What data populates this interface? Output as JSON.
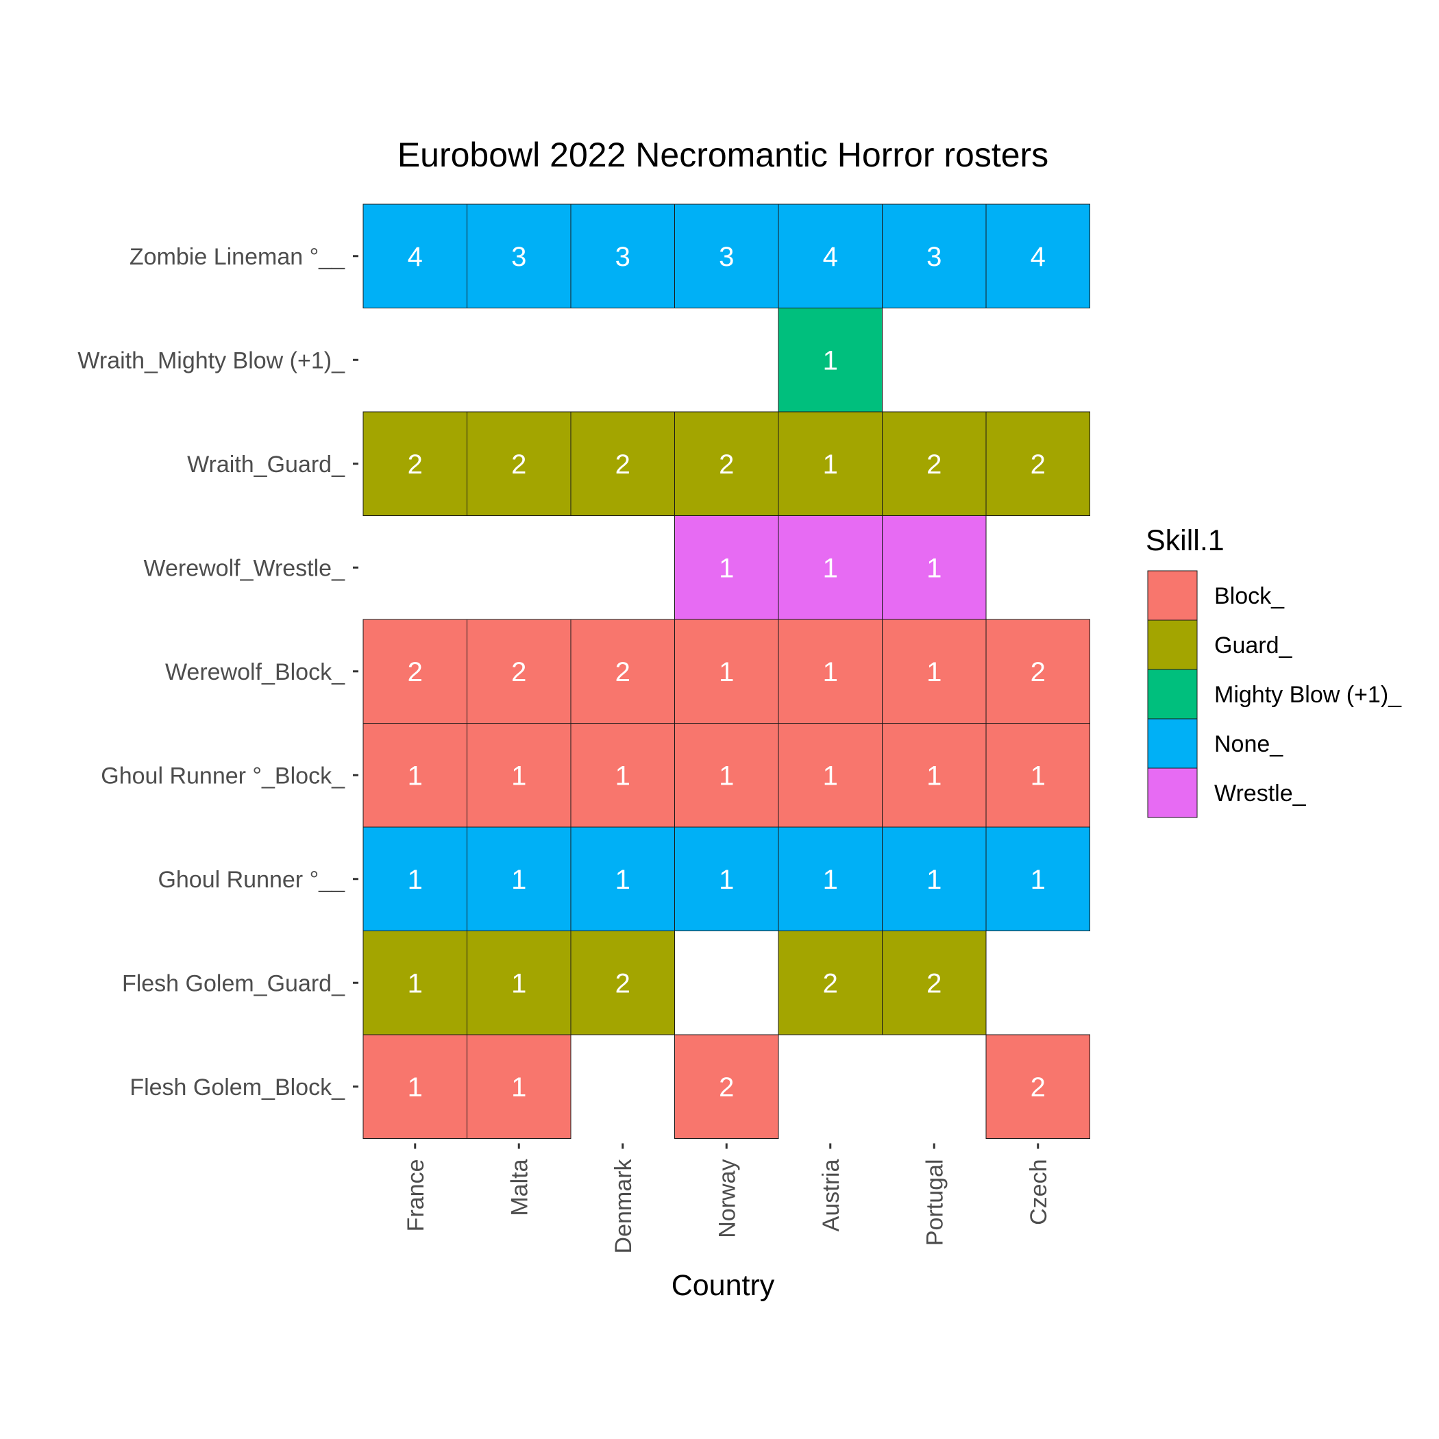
{
  "chart_data": {
    "type": "heatmap",
    "title": "Eurobowl 2022 Necromantic Horror rosters",
    "xlabel": "Country",
    "ylabel": "",
    "x": [
      "France",
      "Malta",
      "Denmark",
      "Norway",
      "Austria",
      "Portugal",
      "Czech"
    ],
    "y": [
      "Zombie Lineman °__",
      "Wraith_Mighty Blow (+1)_",
      "Wraith_Guard_",
      "Werewolf_Wrestle_",
      "Werewolf_Block_",
      "Ghoul Runner °_Block_",
      "Ghoul Runner °__",
      "Flesh Golem_Guard_",
      "Flesh Golem_Block_"
    ],
    "row_skill": [
      "None_",
      "Mighty Blow (+1)_",
      "Guard_",
      "Wrestle_",
      "Block_",
      "Block_",
      "None_",
      "Guard_",
      "Block_"
    ],
    "values": [
      [
        4,
        3,
        3,
        3,
        4,
        3,
        4
      ],
      [
        null,
        null,
        null,
        null,
        1,
        null,
        null
      ],
      [
        2,
        2,
        2,
        2,
        1,
        2,
        2
      ],
      [
        null,
        null,
        null,
        1,
        1,
        1,
        null
      ],
      [
        2,
        2,
        2,
        1,
        1,
        1,
        2
      ],
      [
        1,
        1,
        1,
        1,
        1,
        1,
        1
      ],
      [
        1,
        1,
        1,
        1,
        1,
        1,
        1
      ],
      [
        1,
        1,
        2,
        null,
        2,
        2,
        null
      ],
      [
        1,
        1,
        null,
        2,
        null,
        null,
        2
      ]
    ],
    "legend": {
      "title": "Skill.1",
      "position": "right",
      "entries": [
        {
          "label": "Block_",
          "color": "#F8766D"
        },
        {
          "label": "Guard_",
          "color": "#A3A500"
        },
        {
          "label": "Mighty Blow (+1)_",
          "color": "#00BF7D"
        },
        {
          "label": "None_",
          "color": "#00B0F6"
        },
        {
          "label": "Wrestle_",
          "color": "#E76BF3"
        }
      ]
    },
    "grid": false
  }
}
